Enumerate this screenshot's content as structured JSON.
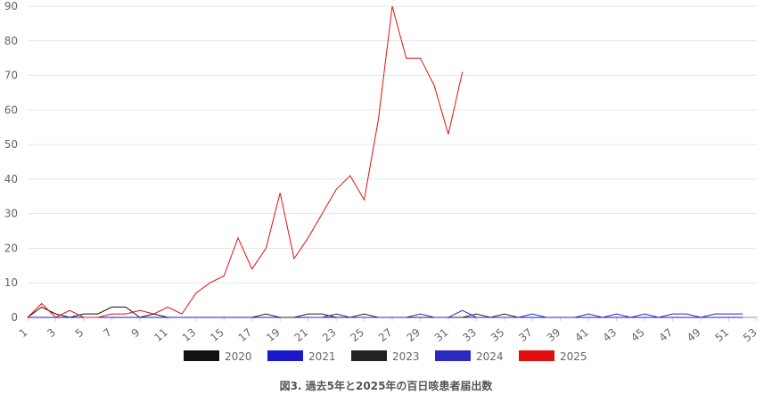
{
  "caption": "図3. 過去5年と2025年の百日咳患者届出数",
  "chart_data": {
    "type": "line",
    "title": "",
    "xlabel": "",
    "ylabel": "",
    "ylim": [
      0,
      90
    ],
    "y_ticks": [
      0,
      10,
      20,
      30,
      40,
      50,
      60,
      70,
      80,
      90
    ],
    "x_range": [
      1,
      53
    ],
    "x_tick_labels": [
      "1",
      "3",
      "5",
      "7",
      "9",
      "11",
      "13",
      "15",
      "17",
      "19",
      "21",
      "23",
      "25",
      "27",
      "29",
      "31",
      "33",
      "35",
      "37",
      "39",
      "41",
      "43",
      "45",
      "47",
      "49",
      "51",
      "53"
    ],
    "grid": "horizontal",
    "legend_position": "bottom",
    "series": [
      {
        "name": "2020",
        "color": "#111111",
        "x": [
          1,
          2,
          3,
          4,
          5,
          6,
          7,
          8,
          9,
          10,
          11
        ],
        "values": [
          0,
          3,
          1,
          0,
          1,
          1,
          3,
          3,
          0,
          1,
          0
        ]
      },
      {
        "name": "2021",
        "color": "#1a1acc",
        "x": [
          1,
          2,
          3,
          4,
          5,
          6,
          7,
          8,
          9,
          10,
          11,
          12,
          13,
          14,
          15,
          16,
          17,
          18,
          19,
          20,
          21,
          22,
          23,
          24,
          25,
          26,
          27,
          28,
          29,
          30,
          31,
          32,
          33,
          34,
          35,
          36,
          37,
          38,
          39,
          40,
          41,
          42,
          43,
          44,
          45,
          46,
          47,
          48,
          49,
          50,
          51,
          52
        ],
        "values": [
          0,
          0,
          0,
          0,
          0,
          0,
          0,
          0,
          0,
          0,
          0,
          0,
          0,
          0,
          0,
          0,
          0,
          0,
          0,
          0,
          0,
          0,
          0,
          0,
          0,
          0,
          0,
          0,
          0,
          0,
          0,
          0,
          0,
          0,
          0,
          0,
          0,
          0,
          0,
          0,
          0,
          0,
          0,
          0,
          0,
          0,
          0,
          0,
          0,
          0,
          0,
          0
        ]
      },
      {
        "name": "2023",
        "color": "#222222",
        "x": [
          17,
          18,
          19,
          20,
          21,
          22,
          23,
          24,
          25,
          26,
          27,
          28,
          29,
          30,
          31,
          32,
          33,
          34,
          35,
          36
        ],
        "values": [
          0,
          1,
          0,
          0,
          1,
          1,
          0,
          0,
          1,
          0,
          0,
          0,
          0,
          0,
          0,
          0,
          1,
          0,
          1,
          0
        ]
      },
      {
        "name": "2024",
        "color": "#2a2ac0",
        "x": [
          21,
          22,
          23,
          24,
          25,
          26,
          27,
          28,
          29,
          30,
          31,
          32,
          33,
          34,
          35,
          36,
          37,
          38,
          39,
          40,
          41,
          42,
          43,
          44,
          45,
          46,
          47,
          48,
          49,
          50,
          51,
          52
        ],
        "values": [
          0,
          0,
          1,
          0,
          0,
          0,
          0,
          0,
          1,
          0,
          0,
          2,
          0,
          0,
          0,
          0,
          1,
          0,
          0,
          0,
          1,
          0,
          1,
          0,
          1,
          0,
          1,
          1,
          0,
          1,
          1,
          1
        ]
      },
      {
        "name": "2025",
        "color": "#e01010",
        "x": [
          1,
          2,
          3,
          4,
          5,
          6,
          7,
          8,
          9,
          10,
          11,
          12,
          13,
          14,
          15,
          16,
          17,
          18,
          19,
          20,
          21,
          22,
          23,
          24,
          25,
          26,
          27,
          28,
          29,
          30,
          31,
          32
        ],
        "values": [
          0,
          4,
          0,
          2,
          0,
          0,
          1,
          1,
          2,
          1,
          3,
          1,
          7,
          10,
          12,
          23,
          14,
          20,
          36,
          17,
          23,
          30,
          37,
          41,
          34,
          57,
          90,
          75,
          75,
          67,
          53,
          71
        ]
      }
    ]
  }
}
